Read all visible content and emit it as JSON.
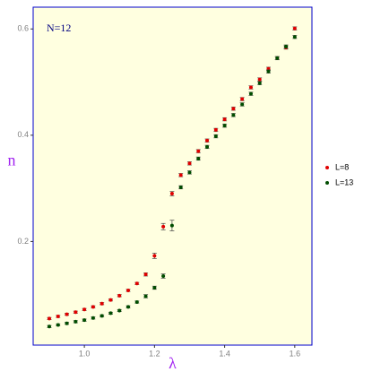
{
  "chart_data": {
    "type": "scatter",
    "annotation": "N=12",
    "x_label": "λ",
    "y_label": "n",
    "x": [
      0.9,
      0.925,
      0.95,
      0.975,
      1.0,
      1.025,
      1.05,
      1.075,
      1.1,
      1.125,
      1.15,
      1.175,
      1.2,
      1.225,
      1.25,
      1.275,
      1.3,
      1.325,
      1.35,
      1.375,
      1.4,
      1.425,
      1.45,
      1.475,
      1.5,
      1.525,
      1.55,
      1.575,
      1.6
    ],
    "series": [
      {
        "name": "L=8",
        "color": "#e00000",
        "values": [
          0.055,
          0.059,
          0.063,
          0.067,
          0.072,
          0.077,
          0.083,
          0.09,
          0.098,
          0.108,
          0.121,
          0.138,
          0.173,
          0.228,
          0.29,
          0.325,
          0.347,
          0.37,
          0.39,
          0.41,
          0.43,
          0.45,
          0.468,
          0.49,
          0.505,
          0.525,
          0.545,
          0.565,
          0.601
        ],
        "errors": [
          0.002,
          0.002,
          0.002,
          0.002,
          0.002,
          0.002,
          0.002,
          0.002,
          0.002,
          0.002,
          0.002,
          0.003,
          0.005,
          0.006,
          0.004,
          0.003,
          0.003,
          0.003,
          0.003,
          0.003,
          0.003,
          0.003,
          0.003,
          0.003,
          0.003,
          0.003,
          0.003,
          0.003,
          0.003
        ]
      },
      {
        "name": "L=13",
        "color": "#004d00",
        "values": [
          0.04,
          0.043,
          0.046,
          0.049,
          0.052,
          0.056,
          0.06,
          0.065,
          0.07,
          0.077,
          0.086,
          0.097,
          0.113,
          0.135,
          0.23,
          0.302,
          0.33,
          0.356,
          0.378,
          0.398,
          0.418,
          0.438,
          0.458,
          0.478,
          0.498,
          0.52,
          0.545,
          0.567,
          0.585
        ],
        "errors": [
          0.002,
          0.002,
          0.002,
          0.002,
          0.002,
          0.002,
          0.002,
          0.002,
          0.002,
          0.002,
          0.002,
          0.003,
          0.003,
          0.004,
          0.01,
          0.003,
          0.003,
          0.003,
          0.003,
          0.003,
          0.003,
          0.003,
          0.003,
          0.003,
          0.003,
          0.003,
          0.003,
          0.003,
          0.003
        ]
      }
    ],
    "xlim": [
      0.854,
      1.649
    ],
    "ylim": [
      0.005,
      0.641
    ],
    "xticks": [
      {
        "value": 1.0,
        "label": "1.0"
      },
      1.2,
      1.4,
      1.6
    ],
    "yticks": [
      0.2,
      0.4,
      0.6
    ],
    "grid": false,
    "legend": "right",
    "background": "#ffffe0",
    "border_color": "#0000cd"
  }
}
